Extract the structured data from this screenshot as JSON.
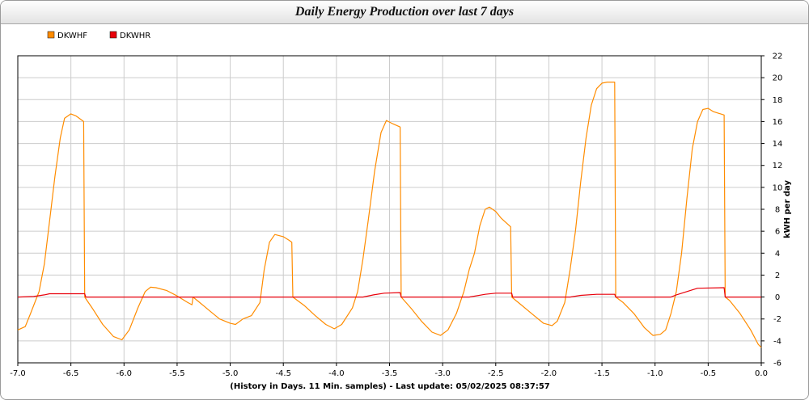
{
  "chart_data": {
    "type": "line",
    "title": "Daily Energy Production over last 7 days",
    "xlabel": "(History in Days. 11 Min. samples) - Last update: 05/02/2025 08:37:57",
    "ylabel": "kWH per day",
    "xlim": [
      -7.0,
      0.0
    ],
    "ylim": [
      -6,
      22
    ],
    "x_ticks": [
      -7.0,
      -6.5,
      -6.0,
      -5.5,
      -5.0,
      -4.5,
      -4.0,
      -3.5,
      -3.0,
      -2.5,
      -2.0,
      -1.5,
      -1.0,
      -0.5,
      0.0
    ],
    "y_ticks": [
      -6,
      -4,
      -2,
      0,
      2,
      4,
      6,
      8,
      10,
      12,
      14,
      16,
      18,
      20,
      22
    ],
    "grid": true,
    "legend": "top-left",
    "series": [
      {
        "name": "DKWHF",
        "color": "#ff8c00",
        "points": [
          [
            -7.0,
            -3.0
          ],
          [
            -6.93,
            -2.7
          ],
          [
            -6.88,
            -1.5
          ],
          [
            -6.8,
            0.5
          ],
          [
            -6.75,
            3.0
          ],
          [
            -6.7,
            7.0
          ],
          [
            -6.65,
            11.0
          ],
          [
            -6.6,
            14.5
          ],
          [
            -6.56,
            16.3
          ],
          [
            -6.5,
            16.7
          ],
          [
            -6.45,
            16.5
          ],
          [
            -6.38,
            16.0
          ],
          [
            -6.37,
            0.0
          ],
          [
            -6.3,
            -1.0
          ],
          [
            -6.2,
            -2.5
          ],
          [
            -6.1,
            -3.6
          ],
          [
            -6.02,
            -3.9
          ],
          [
            -5.95,
            -3.0
          ],
          [
            -5.87,
            -1.0
          ],
          [
            -5.8,
            0.5
          ],
          [
            -5.75,
            0.9
          ],
          [
            -5.7,
            0.85
          ],
          [
            -5.6,
            0.6
          ],
          [
            -5.5,
            0.1
          ],
          [
            -5.4,
            -0.5
          ],
          [
            -5.36,
            -0.7
          ],
          [
            -5.35,
            0.0
          ],
          [
            -5.3,
            -0.4
          ],
          [
            -5.2,
            -1.2
          ],
          [
            -5.1,
            -2.0
          ],
          [
            -5.0,
            -2.4
          ],
          [
            -4.95,
            -2.5
          ],
          [
            -4.88,
            -2.0
          ],
          [
            -4.8,
            -1.7
          ],
          [
            -4.72,
            -0.5
          ],
          [
            -4.68,
            2.5
          ],
          [
            -4.63,
            5.0
          ],
          [
            -4.58,
            5.7
          ],
          [
            -4.5,
            5.5
          ],
          [
            -4.45,
            5.2
          ],
          [
            -4.42,
            5.0
          ],
          [
            -4.41,
            0.0
          ],
          [
            -4.3,
            -0.8
          ],
          [
            -4.2,
            -1.7
          ],
          [
            -4.1,
            -2.5
          ],
          [
            -4.02,
            -2.9
          ],
          [
            -3.95,
            -2.5
          ],
          [
            -3.85,
            -1.0
          ],
          [
            -3.8,
            0.5
          ],
          [
            -3.75,
            3.5
          ],
          [
            -3.7,
            7.0
          ],
          [
            -3.64,
            11.5
          ],
          [
            -3.58,
            15.0
          ],
          [
            -3.53,
            16.1
          ],
          [
            -3.47,
            15.8
          ],
          [
            -3.4,
            15.5
          ],
          [
            -3.39,
            0.0
          ],
          [
            -3.3,
            -1.0
          ],
          [
            -3.2,
            -2.2
          ],
          [
            -3.1,
            -3.2
          ],
          [
            -3.02,
            -3.5
          ],
          [
            -2.95,
            -3.0
          ],
          [
            -2.87,
            -1.5
          ],
          [
            -2.8,
            0.5
          ],
          [
            -2.75,
            2.5
          ],
          [
            -2.7,
            4.0
          ],
          [
            -2.65,
            6.5
          ],
          [
            -2.6,
            8.0
          ],
          [
            -2.56,
            8.2
          ],
          [
            -2.5,
            7.8
          ],
          [
            -2.45,
            7.2
          ],
          [
            -2.36,
            6.4
          ],
          [
            -2.35,
            0.0
          ],
          [
            -2.25,
            -0.8
          ],
          [
            -2.15,
            -1.6
          ],
          [
            -2.05,
            -2.4
          ],
          [
            -1.97,
            -2.6
          ],
          [
            -1.92,
            -2.2
          ],
          [
            -1.85,
            -0.5
          ],
          [
            -1.8,
            2.5
          ],
          [
            -1.75,
            6.0
          ],
          [
            -1.7,
            10.5
          ],
          [
            -1.65,
            14.5
          ],
          [
            -1.6,
            17.5
          ],
          [
            -1.55,
            19.0
          ],
          [
            -1.5,
            19.5
          ],
          [
            -1.45,
            19.6
          ],
          [
            -1.38,
            19.6
          ],
          [
            -1.37,
            0.0
          ],
          [
            -1.3,
            -0.5
          ],
          [
            -1.2,
            -1.5
          ],
          [
            -1.1,
            -2.8
          ],
          [
            -1.02,
            -3.5
          ],
          [
            -0.95,
            -3.4
          ],
          [
            -0.9,
            -3.0
          ],
          [
            -0.85,
            -1.5
          ],
          [
            -0.8,
            0.5
          ],
          [
            -0.75,
            4.0
          ],
          [
            -0.7,
            9.0
          ],
          [
            -0.65,
            13.5
          ],
          [
            -0.6,
            16.0
          ],
          [
            -0.55,
            17.1
          ],
          [
            -0.5,
            17.2
          ],
          [
            -0.45,
            16.9
          ],
          [
            -0.35,
            16.6
          ],
          [
            -0.34,
            0.0
          ],
          [
            -0.3,
            -0.3
          ],
          [
            -0.2,
            -1.5
          ],
          [
            -0.1,
            -3.0
          ],
          [
            -0.03,
            -4.3
          ],
          [
            0.0,
            -4.6
          ]
        ]
      },
      {
        "name": "DKWHR",
        "color": "#e8000b",
        "points": [
          [
            -7.0,
            0.0
          ],
          [
            -6.85,
            0.05
          ],
          [
            -6.75,
            0.2
          ],
          [
            -6.7,
            0.3
          ],
          [
            -6.37,
            0.3
          ],
          [
            -6.36,
            0.0
          ],
          [
            -3.75,
            0.0
          ],
          [
            -3.65,
            0.2
          ],
          [
            -3.55,
            0.35
          ],
          [
            -3.4,
            0.4
          ],
          [
            -3.39,
            0.0
          ],
          [
            -2.75,
            0.0
          ],
          [
            -2.6,
            0.25
          ],
          [
            -2.5,
            0.35
          ],
          [
            -2.35,
            0.35
          ],
          [
            -2.34,
            0.0
          ],
          [
            -1.8,
            0.0
          ],
          [
            -1.7,
            0.15
          ],
          [
            -1.55,
            0.25
          ],
          [
            -1.38,
            0.25
          ],
          [
            -1.37,
            0.0
          ],
          [
            -0.85,
            0.0
          ],
          [
            -0.8,
            0.2
          ],
          [
            -0.7,
            0.5
          ],
          [
            -0.6,
            0.8
          ],
          [
            -0.35,
            0.85
          ],
          [
            -0.34,
            0.0
          ],
          [
            0.0,
            0.0
          ]
        ]
      }
    ]
  }
}
